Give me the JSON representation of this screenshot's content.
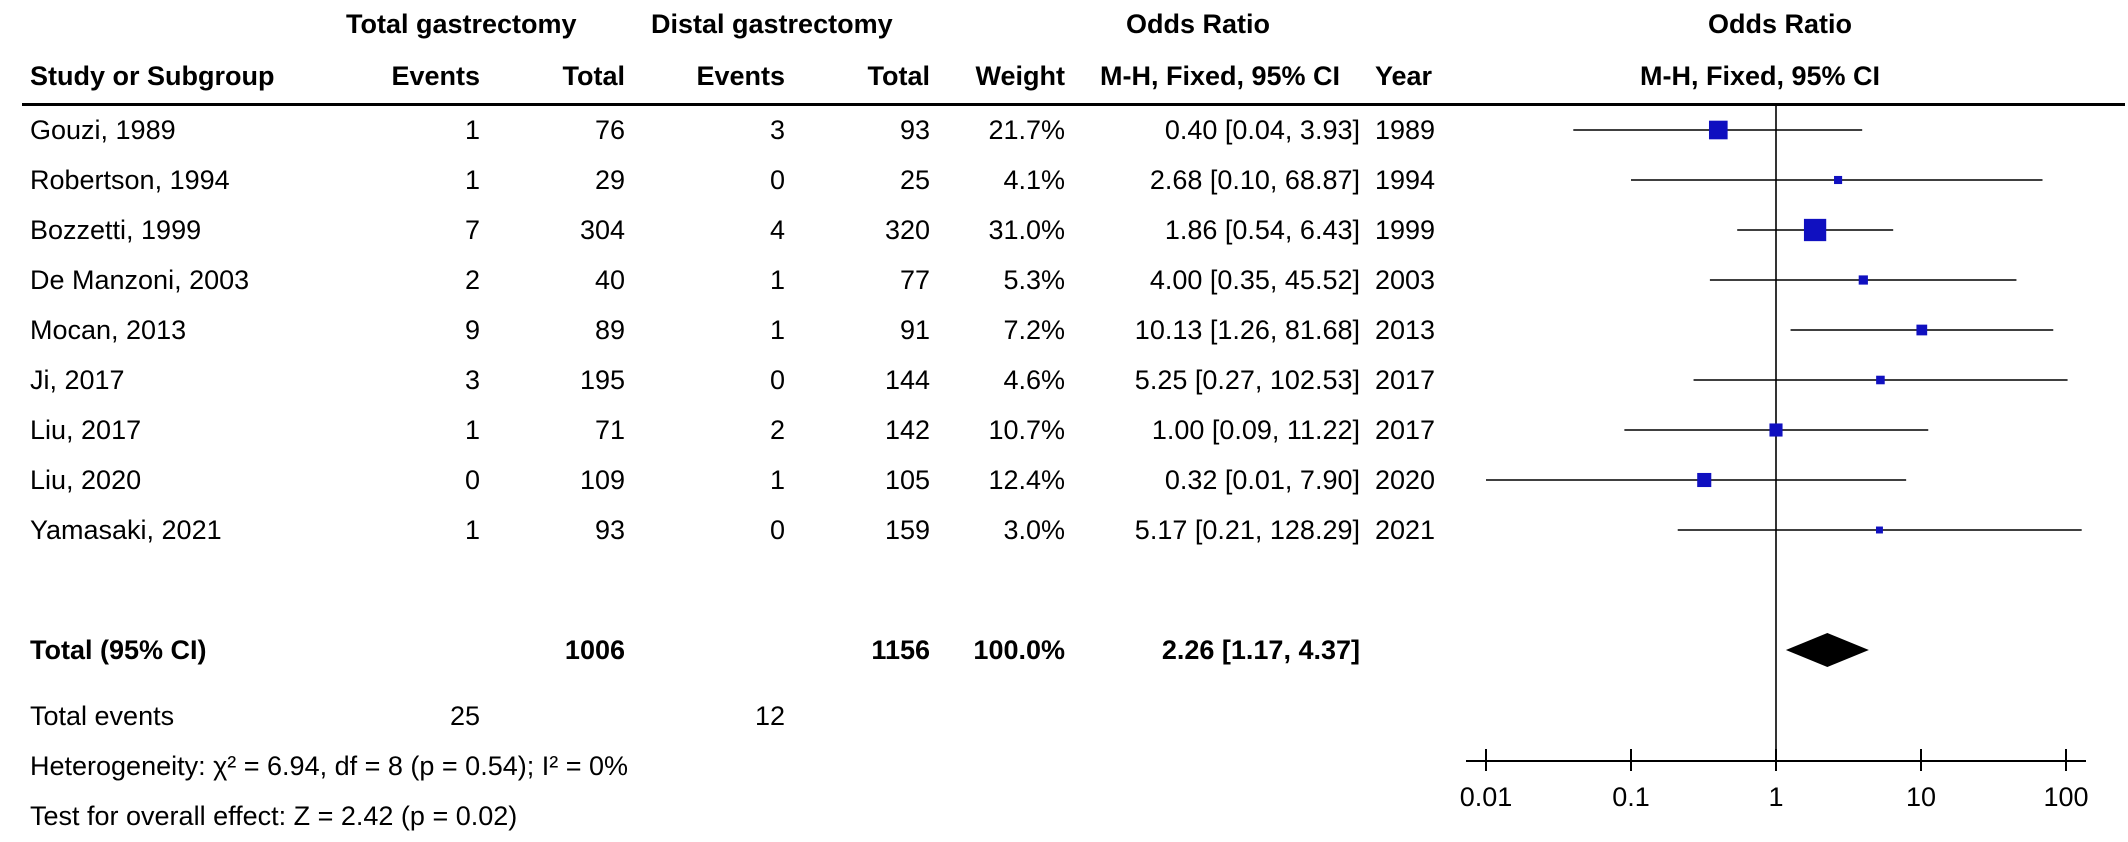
{
  "header": {
    "group1": "Total gastrectomy",
    "group2": "Distal gastrectomy",
    "or_table": "Odds Ratio",
    "or_plot": "Odds Ratio",
    "study": "Study or Subgroup",
    "events1": "Events",
    "total1": "Total",
    "events2": "Events",
    "total2": "Total",
    "weight": "Weight",
    "method_table": "M-H, Fixed, 95% CI",
    "year": "Year",
    "method_plot": "M-H, Fixed, 95% CI"
  },
  "studies": [
    {
      "name": "Gouzi, 1989",
      "e1": "1",
      "n1": "76",
      "e2": "3",
      "n2": "93",
      "weight": "21.7%",
      "ci": "0.40 [0.04, 3.93]",
      "year": "1989"
    },
    {
      "name": "Robertson, 1994",
      "e1": "1",
      "n1": "29",
      "e2": "0",
      "n2": "25",
      "weight": "4.1%",
      "ci": "2.68 [0.10, 68.87]",
      "year": "1994"
    },
    {
      "name": "Bozzetti, 1999",
      "e1": "7",
      "n1": "304",
      "e2": "4",
      "n2": "320",
      "weight": "31.0%",
      "ci": "1.86 [0.54, 6.43]",
      "year": "1999"
    },
    {
      "name": "De Manzoni, 2003",
      "e1": "2",
      "n1": "40",
      "e2": "1",
      "n2": "77",
      "weight": "5.3%",
      "ci": "4.00 [0.35, 45.52]",
      "year": "2003"
    },
    {
      "name": "Mocan, 2013",
      "e1": "9",
      "n1": "89",
      "e2": "1",
      "n2": "91",
      "weight": "7.2%",
      "ci": "10.13 [1.26, 81.68]",
      "year": "2013"
    },
    {
      "name": "Ji, 2017",
      "e1": "3",
      "n1": "195",
      "e2": "0",
      "n2": "144",
      "weight": "4.6%",
      "ci": "5.25 [0.27, 102.53]",
      "year": "2017"
    },
    {
      "name": "Liu, 2017",
      "e1": "1",
      "n1": "71",
      "e2": "2",
      "n2": "142",
      "weight": "10.7%",
      "ci": "1.00 [0.09, 11.22]",
      "year": "2017"
    },
    {
      "name": "Liu, 2020",
      "e1": "0",
      "n1": "109",
      "e2": "1",
      "n2": "105",
      "weight": "12.4%",
      "ci": "0.32 [0.01, 7.90]",
      "year": "2020"
    },
    {
      "name": "Yamasaki, 2021",
      "e1": "1",
      "n1": "93",
      "e2": "0",
      "n2": "159",
      "weight": "3.0%",
      "ci": "5.17 [0.21, 128.29]",
      "year": "2021"
    }
  ],
  "total": {
    "label": "Total (95% CI)",
    "n1": "1006",
    "n2": "1156",
    "weight": "100.0%",
    "ci": "2.26 [1.17, 4.37]"
  },
  "total_events": {
    "label": "Total events",
    "e1": "25",
    "e2": "12"
  },
  "heterogeneity": "Heterogeneity: χ² = 6.94, df = 8 (p = 0.54); I² = 0%",
  "overall_effect": "Test for overall effect: Z = 2.42 (p = 0.02)",
  "colors": {
    "study_marker": "#1010c0",
    "diamond": "#000000",
    "line": "#000000"
  },
  "chart_data": {
    "type": "forest",
    "x_scale": "log",
    "xlim": [
      0.01,
      100
    ],
    "ticks": [
      0.01,
      0.1,
      1,
      10,
      100
    ],
    "tick_labels": [
      "0.01",
      "0.1",
      "1",
      "10",
      "100"
    ],
    "reference_line": 1,
    "studies": [
      {
        "name": "Gouzi, 1989",
        "or": 0.4,
        "lo": 0.04,
        "hi": 3.93,
        "weight": 21.7
      },
      {
        "name": "Robertson, 1994",
        "or": 2.68,
        "lo": 0.1,
        "hi": 68.87,
        "weight": 4.1
      },
      {
        "name": "Bozzetti, 1999",
        "or": 1.86,
        "lo": 0.54,
        "hi": 6.43,
        "weight": 31.0
      },
      {
        "name": "De Manzoni, 2003",
        "or": 4.0,
        "lo": 0.35,
        "hi": 45.52,
        "weight": 5.3
      },
      {
        "name": "Mocan, 2013",
        "or": 10.13,
        "lo": 1.26,
        "hi": 81.68,
        "weight": 7.2
      },
      {
        "name": "Ji, 2017",
        "or": 5.25,
        "lo": 0.27,
        "hi": 102.53,
        "weight": 4.6
      },
      {
        "name": "Liu, 2017",
        "or": 1.0,
        "lo": 0.09,
        "hi": 11.22,
        "weight": 10.7
      },
      {
        "name": "Liu, 2020",
        "or": 0.32,
        "lo": 0.01,
        "hi": 7.9,
        "weight": 12.4
      },
      {
        "name": "Yamasaki, 2021",
        "or": 5.17,
        "lo": 0.21,
        "hi": 128.29,
        "weight": 3.0
      }
    ],
    "pooled": {
      "or": 2.26,
      "lo": 1.17,
      "hi": 4.37
    }
  }
}
